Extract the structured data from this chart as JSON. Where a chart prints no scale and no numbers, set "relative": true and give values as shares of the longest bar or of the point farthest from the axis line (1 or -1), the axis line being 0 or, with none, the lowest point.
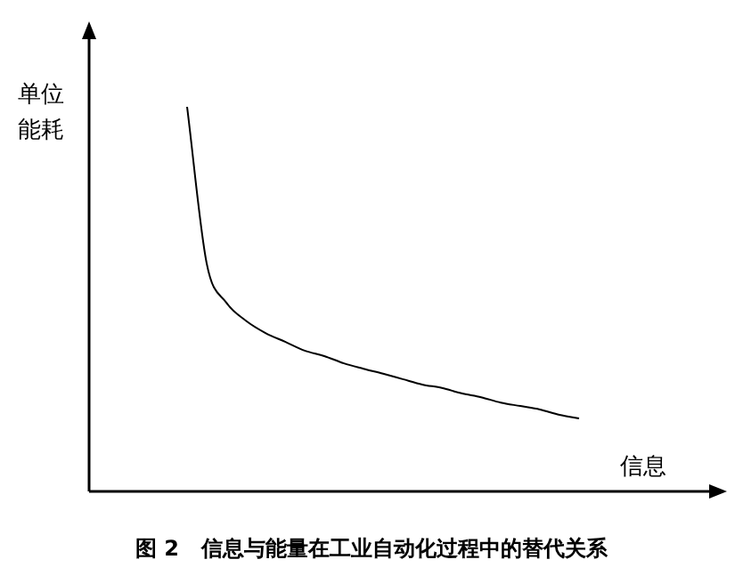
{
  "chart_data": {
    "type": "line",
    "title": "图 2   信息与能量在工业自动化过程中的替代关系",
    "xlabel": "信息",
    "ylabel": "单位能耗",
    "relative": true,
    "marker": "none",
    "line_style": "solid",
    "color": "#000000",
    "categories": [
      null,
      null,
      null,
      null,
      null,
      null,
      null,
      null,
      null,
      null,
      null,
      null,
      null,
      null,
      null,
      null,
      null,
      null,
      null,
      null,
      null,
      null,
      null,
      null,
      null,
      null,
      null,
      null,
      null,
      null,
      null,
      null,
      null
    ],
    "values": [
      null,
      null,
      null,
      null,
      null,
      1,
      0.593,
      0.491,
      0.444,
      0.412,
      0.389,
      0.366,
      0.352,
      0.333,
      0.319,
      0.306,
      0.292,
      0.278,
      0.269,
      0.255,
      0.245,
      0.231,
      0.222,
      0.213,
      0.199,
      0.19,
      null,
      null,
      null,
      null,
      null,
      null,
      null
    ]
  }
}
